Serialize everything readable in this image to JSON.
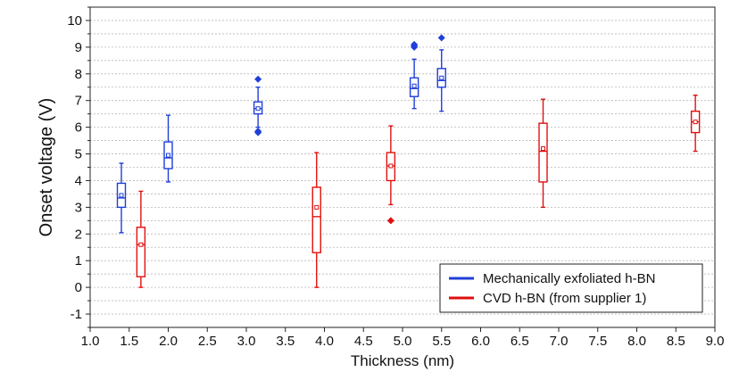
{
  "chart_data": {
    "type": "box",
    "title": "",
    "xlabel": "Thickness (nm)",
    "ylabel": "Onset voltage (V)",
    "xlim": [
      1.0,
      9.0
    ],
    "ylim": [
      -1.5,
      10.5
    ],
    "xticks": [
      1.0,
      1.5,
      2.0,
      2.5,
      3.0,
      3.5,
      4.0,
      4.5,
      5.0,
      5.5,
      6.0,
      6.5,
      7.0,
      7.5,
      8.0,
      8.5,
      9.0
    ],
    "xtick_labels": [
      "1.0",
      "1.5",
      "2.0",
      "2.5",
      "3.0",
      "3.5",
      "4.0",
      "4.5",
      "5.0",
      "5.5",
      "6.0",
      "6.5",
      "7.0",
      "7.5",
      "8.0",
      "8.5",
      "9.0"
    ],
    "yticks": [
      -1,
      0,
      1,
      2,
      3,
      4,
      5,
      6,
      7,
      8,
      9,
      10
    ],
    "ytick_labels": [
      "-1",
      "0",
      "1",
      "2",
      "3",
      "4",
      "5",
      "6",
      "7",
      "8",
      "9",
      "10"
    ],
    "grid": true,
    "legend_position": "bottom-right",
    "series": [
      {
        "name": "Mechanically exfoliated h-BN",
        "color": "#1f3fd8",
        "boxes": [
          {
            "x": 1.4,
            "min": 2.05,
            "q1": 3.0,
            "median": 3.35,
            "mean": 3.45,
            "q3": 3.9,
            "max": 4.65,
            "outliers": []
          },
          {
            "x": 2.0,
            "min": 3.95,
            "q1": 4.45,
            "median": 4.85,
            "mean": 4.95,
            "q3": 5.45,
            "max": 6.45,
            "outliers": []
          },
          {
            "x": 3.15,
            "min": 6.0,
            "q1": 6.5,
            "median": 6.7,
            "mean": 6.7,
            "q3": 6.95,
            "max": 7.5,
            "outliers": [
              5.8,
              5.85,
              7.8
            ]
          },
          {
            "x": 5.15,
            "min": 6.7,
            "q1": 7.15,
            "median": 7.45,
            "mean": 7.55,
            "q3": 7.85,
            "max": 8.55,
            "outliers": [
              9.0,
              9.05,
              9.1
            ]
          },
          {
            "x": 5.5,
            "min": 6.6,
            "q1": 7.5,
            "median": 7.75,
            "mean": 7.85,
            "q3": 8.2,
            "max": 8.9,
            "outliers": [
              9.35
            ]
          }
        ]
      },
      {
        "name": "CVD h-BN (from supplier 1)",
        "color": "#e01010",
        "boxes": [
          {
            "x": 1.65,
            "min": 0.0,
            "q1": 0.4,
            "median": 1.6,
            "mean": 1.6,
            "q3": 2.25,
            "max": 3.6,
            "outliers": []
          },
          {
            "x": 3.9,
            "min": 0.0,
            "q1": 1.3,
            "median": 2.65,
            "mean": 3.0,
            "q3": 3.75,
            "max": 5.05,
            "outliers": []
          },
          {
            "x": 4.85,
            "min": 3.1,
            "q1": 4.0,
            "median": 4.55,
            "mean": 4.55,
            "q3": 5.05,
            "max": 6.05,
            "outliers": [
              2.5
            ]
          },
          {
            "x": 6.8,
            "min": 3.0,
            "q1": 3.95,
            "median": 5.1,
            "mean": 5.2,
            "q3": 6.15,
            "max": 7.05,
            "outliers": []
          },
          {
            "x": 8.75,
            "min": 5.1,
            "q1": 5.8,
            "median": 6.2,
            "mean": 6.2,
            "q3": 6.6,
            "max": 7.2,
            "outliers": []
          }
        ]
      }
    ]
  }
}
